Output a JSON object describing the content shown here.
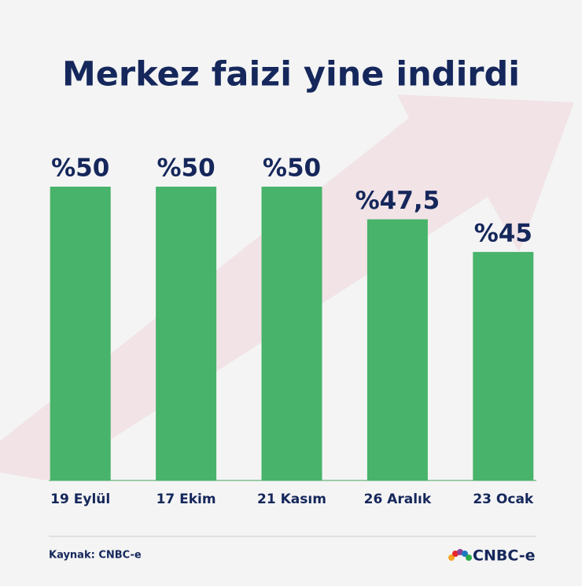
{
  "chart_data": {
    "type": "bar",
    "title": "Merkez faizi yine indirdi",
    "categories": [
      "19 Eylül",
      "17 Ekim",
      "21 Kasım",
      "26 Aralık",
      "23 Ocak"
    ],
    "values": [
      50,
      50,
      50,
      47.5,
      45
    ],
    "value_labels": [
      "%50",
      "%50",
      "%50",
      "%47,5",
      "%45"
    ],
    "color": "#48b36a",
    "ylim": [
      27.5,
      50
    ]
  },
  "footer": {
    "source": "Kaynak: CNBC-e",
    "logo": "CNBC-e"
  }
}
